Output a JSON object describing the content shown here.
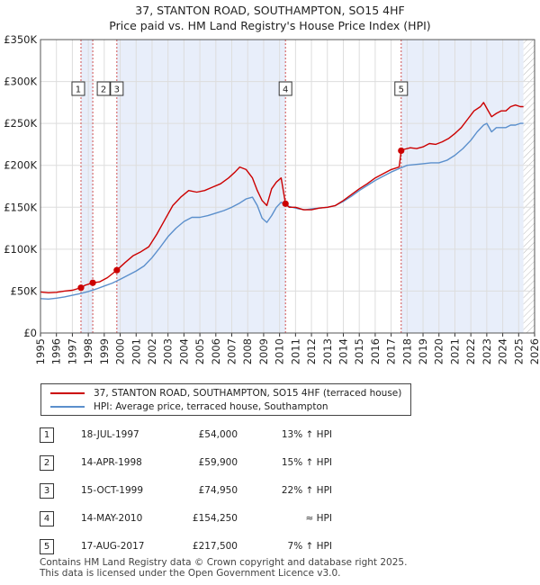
{
  "title_line1": "37, STANTON ROAD, SOUTHAMPTON, SO15 4HF",
  "title_line2": "Price paid vs. HM Land Registry's House Price Index (HPI)",
  "colors": {
    "property": "#cc0000",
    "hpi": "#5b8fcc",
    "shade": "#e8eefa",
    "marker_line": "#d05050",
    "grid": "#dddddd"
  },
  "chart_data": {
    "type": "line",
    "title": "37, STANTON ROAD, SOUTHAMPTON, SO15 4HF — Price paid vs. HM Land Registry's House Price Index (HPI)",
    "xlim": [
      1995,
      2026
    ],
    "ylim": [
      0,
      350000
    ],
    "x_ticks": [
      "1995",
      "1996",
      "1997",
      "1998",
      "1999",
      "2000",
      "2001",
      "2002",
      "2003",
      "2004",
      "2005",
      "2006",
      "2007",
      "2008",
      "2009",
      "2010",
      "2011",
      "2012",
      "2013",
      "2014",
      "2015",
      "2016",
      "2017",
      "2018",
      "2019",
      "2020",
      "2021",
      "2022",
      "2023",
      "2024",
      "2025",
      "2026"
    ],
    "y_ticks": [
      {
        "value": 0,
        "label": "£0"
      },
      {
        "value": 50000,
        "label": "£50K"
      },
      {
        "value": 100000,
        "label": "£100K"
      },
      {
        "value": 150000,
        "label": "£150K"
      },
      {
        "value": 200000,
        "label": "£200K"
      },
      {
        "value": 250000,
        "label": "£250K"
      },
      {
        "value": 300000,
        "label": "£300K"
      },
      {
        "value": 350000,
        "label": "£350K"
      }
    ],
    "shaded_ranges": [
      [
        1997.54,
        1998.28
      ],
      [
        1999.79,
        2010.37
      ],
      [
        2017.63,
        2025.3
      ]
    ],
    "future_hatch_from": 2025.3,
    "series": [
      {
        "name": "37, STANTON ROAD, SOUTHAMPTON, SO15 4HF (terraced house)",
        "x": [
          1995.0,
          1995.5,
          1996.0,
          1996.5,
          1997.0,
          1997.54,
          1997.8,
          1998.28,
          1998.7,
          1999.2,
          1999.79,
          2000.3,
          2000.8,
          2001.3,
          2001.8,
          2002.3,
          2002.8,
          2003.3,
          2003.8,
          2004.3,
          2004.8,
          2005.3,
          2005.8,
          2006.3,
          2006.8,
          2007.2,
          2007.5,
          2007.9,
          2008.3,
          2008.6,
          2008.9,
          2009.2,
          2009.5,
          2009.8,
          2010.1,
          2010.37,
          2010.6,
          2011.0,
          2011.5,
          2012.0,
          2012.5,
          2013.0,
          2013.5,
          2014.0,
          2014.5,
          2015.0,
          2015.5,
          2016.0,
          2016.5,
          2017.0,
          2017.5,
          2017.63,
          2017.8,
          2018.2,
          2018.6,
          2019.0,
          2019.4,
          2019.8,
          2020.2,
          2020.6,
          2021.0,
          2021.4,
          2021.8,
          2022.2,
          2022.6,
          2022.8,
          2023.0,
          2023.3,
          2023.6,
          2023.9,
          2024.2,
          2024.5,
          2024.8,
          2025.1,
          2025.3
        ],
        "values": [
          49000,
          48000,
          48500,
          50000,
          51000,
          54000,
          57000,
          59900,
          61000,
          66000,
          74950,
          84000,
          92000,
          97000,
          103000,
          118000,
          135000,
          152000,
          162000,
          170000,
          168000,
          170000,
          174000,
          178000,
          185000,
          192000,
          198000,
          195000,
          185000,
          170000,
          158000,
          152000,
          172000,
          180000,
          185000,
          154250,
          150000,
          150000,
          147000,
          147000,
          149000,
          150000,
          152000,
          158000,
          165000,
          172000,
          178000,
          185000,
          190000,
          195000,
          198000,
          217500,
          219000,
          221000,
          220000,
          222000,
          226000,
          225000,
          228000,
          232000,
          238000,
          245000,
          255000,
          265000,
          270000,
          275000,
          268000,
          258000,
          262000,
          265000,
          265000,
          270000,
          272000,
          270000,
          270000
        ]
      },
      {
        "name": "HPI: Average price, terraced house, Southampton",
        "x": [
          1995.0,
          1995.5,
          1996.0,
          1996.5,
          1997.0,
          1997.5,
          1998.0,
          1998.5,
          1999.0,
          1999.5,
          2000.0,
          2000.5,
          2001.0,
          2001.5,
          2002.0,
          2002.5,
          2003.0,
          2003.5,
          2004.0,
          2004.5,
          2005.0,
          2005.5,
          2006.0,
          2006.5,
          2007.0,
          2007.5,
          2007.9,
          2008.3,
          2008.6,
          2008.9,
          2009.2,
          2009.5,
          2009.8,
          2010.1,
          2010.4,
          2010.8,
          2011.2,
          2011.6,
          2012.0,
          2012.5,
          2013.0,
          2013.5,
          2014.0,
          2014.5,
          2015.0,
          2015.5,
          2016.0,
          2016.5,
          2017.0,
          2017.5,
          2018.0,
          2018.5,
          2019.0,
          2019.5,
          2020.0,
          2020.5,
          2021.0,
          2021.5,
          2022.0,
          2022.4,
          2022.8,
          2023.0,
          2023.3,
          2023.6,
          2023.9,
          2024.2,
          2024.5,
          2024.8,
          2025.1,
          2025.3
        ],
        "values": [
          41000,
          40500,
          41500,
          43000,
          45000,
          47000,
          49500,
          52500,
          56000,
          59500,
          64000,
          69000,
          74000,
          80000,
          90000,
          102000,
          115000,
          125000,
          133000,
          138000,
          138000,
          140000,
          143000,
          146000,
          150000,
          155000,
          160000,
          162000,
          152000,
          137000,
          132000,
          140000,
          150000,
          156000,
          152000,
          150000,
          148000,
          147000,
          148000,
          149000,
          150000,
          152000,
          157000,
          163000,
          170000,
          176000,
          182000,
          187000,
          192000,
          196000,
          200000,
          201000,
          202000,
          203000,
          203000,
          206000,
          212000,
          220000,
          230000,
          240000,
          248000,
          250000,
          240000,
          245000,
          245000,
          245000,
          248000,
          248000,
          250000,
          250000
        ]
      }
    ],
    "transactions": [
      {
        "n": "1",
        "x": 1997.54,
        "date": "18-JUL-1997",
        "price": 54000,
        "price_label": "£54,000",
        "hpi": "13% ↑ HPI"
      },
      {
        "n": "2",
        "x": 1998.28,
        "date": "14-APR-1998",
        "price": 59900,
        "price_label": "£59,900",
        "hpi": "15% ↑ HPI"
      },
      {
        "n": "3",
        "x": 1999.79,
        "date": "15-OCT-1999",
        "price": 74950,
        "price_label": "£74,950",
        "hpi": "22% ↑ HPI"
      },
      {
        "n": "4",
        "x": 2010.37,
        "date": "14-MAY-2010",
        "price": 154250,
        "price_label": "£154,250",
        "hpi": "≈ HPI"
      },
      {
        "n": "5",
        "x": 2017.63,
        "date": "17-AUG-2017",
        "price": 217500,
        "price_label": "£217,500",
        "hpi": "7% ↑ HPI"
      }
    ]
  },
  "legend": {
    "property_label": "37, STANTON ROAD, SOUTHAMPTON, SO15 4HF (terraced house)",
    "hpi_label": "HPI: Average price, terraced house, Southampton"
  },
  "footer": {
    "line1": "Contains HM Land Registry data © Crown copyright and database right 2025.",
    "line2": "This data is licensed under the Open Government Licence v3.0."
  }
}
